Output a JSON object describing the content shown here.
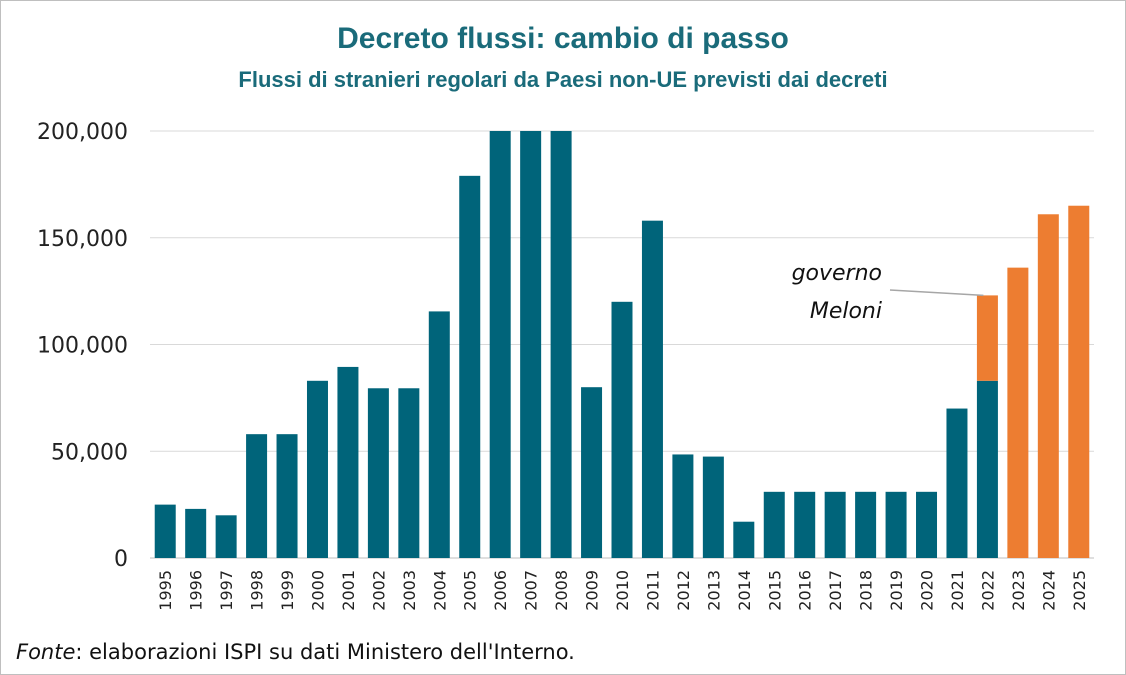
{
  "title": "Decreto flussi: cambio di passo",
  "subtitle": "Flussi di stranieri regolari da Paesi non-UE previsti dai decreti",
  "source": {
    "label": "Fonte",
    "text": ": elaborazioni ISPI su dati Ministero dell'Interno."
  },
  "colors": {
    "teal": "#00647a",
    "orange": "#ed7d31",
    "title": "#1a6b7a",
    "grid": "#d9d9d9"
  },
  "chart_data": {
    "type": "bar",
    "stacked": true,
    "categories": [
      "1995",
      "1996",
      "1997",
      "1998",
      "1999",
      "2000",
      "2001",
      "2002",
      "2003",
      "2004",
      "2005",
      "2006",
      "2007",
      "2008",
      "2009",
      "2010",
      "2011",
      "2012",
      "2013",
      "2014",
      "2015",
      "2016",
      "2017",
      "2018",
      "2019",
      "2020",
      "2021",
      "2022",
      "2023",
      "2024",
      "2025"
    ],
    "series": [
      {
        "color": "#00647a",
        "values": [
          25000,
          23000,
          20000,
          58000,
          58000,
          83000,
          89500,
          79500,
          79500,
          115500,
          179000,
          200000,
          200000,
          200000,
          80000,
          120000,
          158000,
          48500,
          47500,
          17000,
          31000,
          31000,
          31000,
          31000,
          31000,
          31000,
          70000,
          83000,
          0,
          0,
          0
        ]
      },
      {
        "color": "#ed7d31",
        "values": [
          0,
          0,
          0,
          0,
          0,
          0,
          0,
          0,
          0,
          0,
          0,
          0,
          0,
          0,
          0,
          0,
          0,
          0,
          0,
          0,
          0,
          0,
          0,
          0,
          0,
          0,
          0,
          40000,
          136000,
          161000,
          165000
        ]
      }
    ],
    "yticks": [
      "0",
      "50,000",
      "100,000",
      "150,000",
      "200,000"
    ],
    "ylim": [
      0,
      200000
    ],
    "grid": true,
    "annotation": {
      "lines": [
        "governo",
        "Meloni"
      ],
      "category": "2022"
    }
  }
}
